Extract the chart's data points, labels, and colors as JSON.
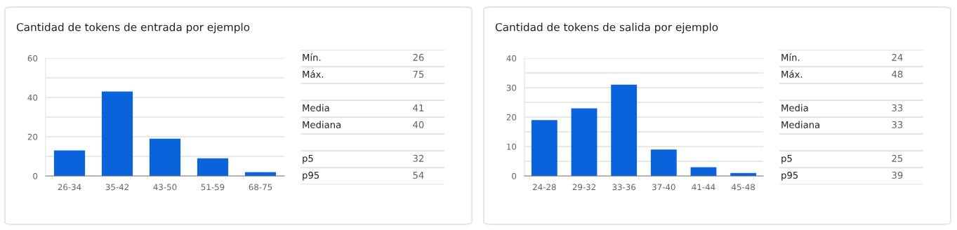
{
  "chart_data": [
    {
      "type": "bar",
      "title": "Cantidad de tokens de entrada por ejemplo",
      "categories": [
        "26-34",
        "35-42",
        "43-50",
        "51-59",
        "68-75"
      ],
      "values": [
        13,
        43,
        19,
        9,
        2
      ],
      "color": "#0b63db",
      "ylim": [
        0,
        60
      ],
      "yticks": [
        0,
        {
          "value": 10,
          "label": null
        },
        20,
        {
          "value": 30,
          "label": null
        },
        40,
        {
          "value": 50,
          "label": null
        },
        60
      ],
      "grid": "y"
    },
    {
      "type": "other",
      "categories": [
        "Mín.",
        "Máx.",
        null,
        "Media",
        "Mediana",
        null,
        "p5",
        "p95"
      ],
      "values": [
        26,
        75,
        null,
        41,
        40,
        null,
        32,
        54
      ],
      "data_labels": true
    },
    {
      "type": "bar",
      "title": "Cantidad de tokens de salida por ejemplo",
      "categories": [
        "24-28",
        "29-32",
        "33-36",
        "37-40",
        "41-44",
        "45-48"
      ],
      "values": [
        19,
        23,
        31,
        9,
        3,
        1
      ],
      "color": "#0b63db",
      "ylim": [
        0,
        40
      ],
      "yticks": [
        0,
        {
          "value": 5,
          "label": null
        },
        10,
        {
          "value": 15,
          "label": null
        },
        20,
        {
          "value": 25,
          "label": null
        },
        30,
        {
          "value": 35,
          "label": null
        },
        40
      ],
      "grid": "y"
    },
    {
      "type": "other",
      "categories": [
        "Mín.",
        "Máx.",
        null,
        "Media",
        "Mediana",
        null,
        "p5",
        "p95"
      ],
      "values": [
        24,
        48,
        null,
        33,
        33,
        null,
        25,
        39
      ],
      "data_labels": true
    }
  ]
}
